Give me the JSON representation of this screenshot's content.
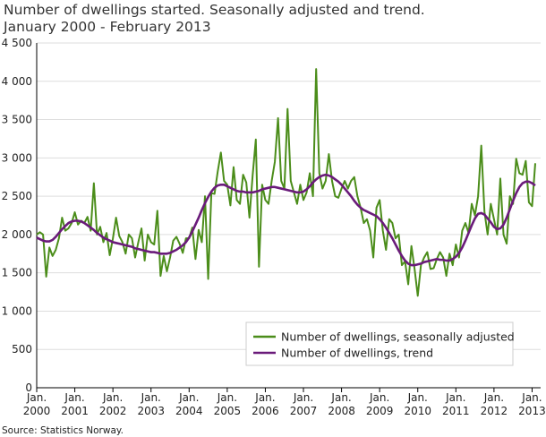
{
  "chart_data": {
    "type": "line",
    "title": "Number of dwellings started. Seasonally adjusted and trend.",
    "subtitle": "January 2000 - February 2013",
    "source": "Source: Statistics Norway.",
    "x": [
      "2000-01",
      "2000-02",
      "2000-03",
      "2000-04",
      "2000-05",
      "2000-06",
      "2000-07",
      "2000-08",
      "2000-09",
      "2000-10",
      "2000-11",
      "2000-12",
      "2001-01",
      "2001-02",
      "2001-03",
      "2001-04",
      "2001-05",
      "2001-06",
      "2001-07",
      "2001-08",
      "2001-09",
      "2001-10",
      "2001-11",
      "2001-12",
      "2002-01",
      "2002-02",
      "2002-03",
      "2002-04",
      "2002-05",
      "2002-06",
      "2002-07",
      "2002-08",
      "2002-09",
      "2002-10",
      "2002-11",
      "2002-12",
      "2003-01",
      "2003-02",
      "2003-03",
      "2003-04",
      "2003-05",
      "2003-06",
      "2003-07",
      "2003-08",
      "2003-09",
      "2003-10",
      "2003-11",
      "2003-12",
      "2004-01",
      "2004-02",
      "2004-03",
      "2004-04",
      "2004-05",
      "2004-06",
      "2004-07",
      "2004-08",
      "2004-09",
      "2004-10",
      "2004-11",
      "2004-12",
      "2005-01",
      "2005-02",
      "2005-03",
      "2005-04",
      "2005-05",
      "2005-06",
      "2005-07",
      "2005-08",
      "2005-09",
      "2005-10",
      "2005-11",
      "2005-12",
      "2006-01",
      "2006-02",
      "2006-03",
      "2006-04",
      "2006-05",
      "2006-06",
      "2006-07",
      "2006-08",
      "2006-09",
      "2006-10",
      "2006-11",
      "2006-12",
      "2007-01",
      "2007-02",
      "2007-03",
      "2007-04",
      "2007-05",
      "2007-06",
      "2007-07",
      "2007-08",
      "2007-09",
      "2007-10",
      "2007-11",
      "2007-12",
      "2008-01",
      "2008-02",
      "2008-03",
      "2008-04",
      "2008-05",
      "2008-06",
      "2008-07",
      "2008-08",
      "2008-09",
      "2008-10",
      "2008-11",
      "2008-12",
      "2009-01",
      "2009-02",
      "2009-03",
      "2009-04",
      "2009-05",
      "2009-06",
      "2009-07",
      "2009-08",
      "2009-09",
      "2009-10",
      "2009-11",
      "2009-12",
      "2010-01",
      "2010-02",
      "2010-03",
      "2010-04",
      "2010-05",
      "2010-06",
      "2010-07",
      "2010-08",
      "2010-09",
      "2010-10",
      "2010-11",
      "2010-12",
      "2011-01",
      "2011-02",
      "2011-03",
      "2011-04",
      "2011-05",
      "2011-06",
      "2011-07",
      "2011-08",
      "2011-09",
      "2011-10",
      "2011-11",
      "2011-12",
      "2012-01",
      "2012-02",
      "2012-03",
      "2012-04",
      "2012-05",
      "2012-06",
      "2012-07",
      "2012-08",
      "2012-09",
      "2012-10",
      "2012-11",
      "2012-12",
      "2013-01",
      "2013-02"
    ],
    "series": [
      {
        "name": "Number of dwellings, seasonally adjusted",
        "color": "#4b8d1a",
        "values": [
          2000,
          2030,
          2000,
          1450,
          1830,
          1720,
          1800,
          1950,
          2220,
          2050,
          2080,
          2150,
          2290,
          2130,
          2180,
          2150,
          2230,
          2050,
          2670,
          2000,
          2100,
          1900,
          2020,
          1730,
          1950,
          2220,
          1980,
          1900,
          1750,
          2000,
          1950,
          1700,
          1900,
          2080,
          1660,
          2000,
          1900,
          1870,
          2310,
          1460,
          1720,
          1520,
          1700,
          1920,
          1970,
          1880,
          1760,
          1950,
          1950,
          2090,
          1680,
          2060,
          1900,
          2500,
          1420,
          2540,
          2530,
          2820,
          3070,
          2700,
          2650,
          2380,
          2880,
          2450,
          2400,
          2780,
          2680,
          2220,
          2770,
          3240,
          1580,
          2650,
          2450,
          2400,
          2700,
          2950,
          3520,
          2700,
          2600,
          3640,
          2700,
          2550,
          2400,
          2650,
          2450,
          2550,
          2800,
          2500,
          4160,
          2800,
          2600,
          2700,
          3050,
          2700,
          2500,
          2480,
          2600,
          2700,
          2600,
          2700,
          2750,
          2500,
          2350,
          2150,
          2200,
          2050,
          1700,
          2350,
          2450,
          2050,
          1800,
          2200,
          2150,
          1950,
          2000,
          1600,
          1650,
          1350,
          1850,
          1550,
          1200,
          1600,
          1700,
          1770,
          1550,
          1560,
          1680,
          1770,
          1700,
          1460,
          1750,
          1600,
          1870,
          1700,
          2050,
          2150,
          2020,
          2400,
          2250,
          2500,
          3160,
          2300,
          2000,
          2400,
          2200,
          2000,
          2730,
          2000,
          1880,
          2500,
          2400,
          2990,
          2800,
          2780,
          2960,
          2420,
          2370,
          2930
        ]
      },
      {
        "name": "Number of dwellings, trend",
        "color": "#6a1b7a",
        "values": [
          1960,
          1940,
          1920,
          1910,
          1910,
          1930,
          1970,
          2020,
          2070,
          2110,
          2150,
          2170,
          2180,
          2180,
          2170,
          2150,
          2120,
          2090,
          2060,
          2020,
          1990,
          1960,
          1940,
          1920,
          1900,
          1890,
          1880,
          1870,
          1860,
          1850,
          1840,
          1820,
          1810,
          1800,
          1790,
          1780,
          1770,
          1770,
          1760,
          1750,
          1750,
          1750,
          1760,
          1780,
          1800,
          1830,
          1860,
          1900,
          1960,
          2040,
          2130,
          2220,
          2320,
          2410,
          2490,
          2560,
          2610,
          2640,
          2650,
          2650,
          2630,
          2610,
          2590,
          2570,
          2560,
          2560,
          2550,
          2550,
          2550,
          2560,
          2570,
          2590,
          2600,
          2610,
          2620,
          2620,
          2610,
          2600,
          2590,
          2580,
          2570,
          2560,
          2550,
          2550,
          2560,
          2590,
          2630,
          2680,
          2720,
          2750,
          2770,
          2780,
          2770,
          2750,
          2720,
          2690,
          2650,
          2600,
          2550,
          2500,
          2440,
          2390,
          2350,
          2320,
          2300,
          2280,
          2260,
          2240,
          2200,
          2150,
          2090,
          2020,
          1950,
          1870,
          1790,
          1720,
          1660,
          1620,
          1600,
          1600,
          1610,
          1620,
          1640,
          1650,
          1660,
          1670,
          1680,
          1670,
          1670,
          1660,
          1660,
          1680,
          1710,
          1760,
          1830,
          1920,
          2020,
          2120,
          2210,
          2270,
          2280,
          2260,
          2210,
          2160,
          2100,
          2070,
          2080,
          2130,
          2220,
          2330,
          2440,
          2540,
          2620,
          2670,
          2690,
          2690,
          2670,
          2640
        ]
      }
    ],
    "xlim": [
      "2000-01",
      "2013-02"
    ],
    "xticks": [
      {
        "value": "2000-01",
        "label": "Jan. 2000"
      },
      {
        "value": "2001-01",
        "label": "Jan. 2001"
      },
      {
        "value": "2002-01",
        "label": "Jan. 2002"
      },
      {
        "value": "2003-01",
        "label": "Jan. 2003"
      },
      {
        "value": "2004-01",
        "label": "Jan. 2004"
      },
      {
        "value": "2005-01",
        "label": "Jan. 2005"
      },
      {
        "value": "2006-01",
        "label": "Jan. 2006"
      },
      {
        "value": "2007-01",
        "label": "Jan. 2007"
      },
      {
        "value": "2008-01",
        "label": "Jan. 2008"
      },
      {
        "value": "2009-01",
        "label": "Jan. 2009"
      },
      {
        "value": "2010-01",
        "label": "Jan. 2010"
      },
      {
        "value": "2011-01",
        "label": "Jan. 2011"
      },
      {
        "value": "2012-01",
        "label": "Jan. 2012"
      },
      {
        "value": "2013-01",
        "label": "Jan. 2013"
      }
    ],
    "ylim": [
      0,
      4500
    ],
    "yticks": [
      0,
      500,
      {
        "value": 1000,
        "label": "1 000"
      },
      {
        "value": 1500,
        "label": "1 500"
      },
      {
        "value": 2000,
        "label": "2 000"
      },
      {
        "value": 2500,
        "label": "2 500"
      },
      {
        "value": 3000,
        "label": "3 000"
      },
      {
        "value": 3500,
        "label": "3 500"
      },
      {
        "value": 4000,
        "label": "4 000"
      },
      {
        "value": 4500,
        "label": "4 500"
      }
    ],
    "grid": true,
    "legend": "lower right"
  }
}
